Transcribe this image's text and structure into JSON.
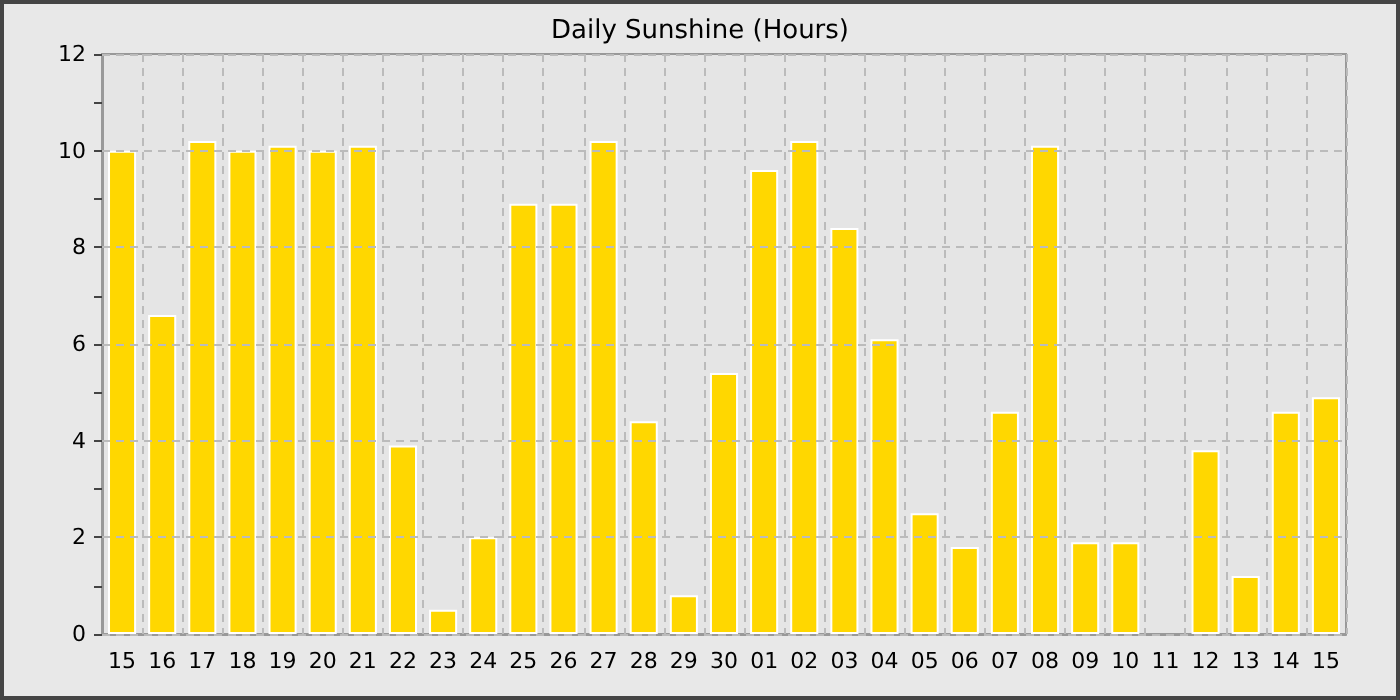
{
  "chart_data": {
    "type": "bar",
    "title": "Daily Sunshine (Hours)",
    "categories": [
      "15",
      "16",
      "17",
      "18",
      "19",
      "20",
      "21",
      "22",
      "23",
      "24",
      "25",
      "26",
      "27",
      "28",
      "29",
      "30",
      "01",
      "02",
      "03",
      "04",
      "05",
      "06",
      "07",
      "08",
      "09",
      "10",
      "11",
      "12",
      "13",
      "14",
      "15"
    ],
    "values": [
      10,
      6.6,
      10.2,
      10,
      10.1,
      10,
      10.1,
      3.9,
      0.5,
      2,
      8.9,
      8.9,
      10.2,
      4.4,
      0.8,
      5.4,
      9.6,
      10.2,
      8.4,
      6.1,
      2.5,
      1.8,
      4.6,
      10.1,
      1.9,
      1.9,
      0,
      3.8,
      1.2,
      4.6,
      4.9
    ],
    "color": "#ffd700",
    "ylim": [
      0,
      12
    ],
    "yticks": [
      0,
      {
        "value": 1,
        "label": null
      },
      2,
      {
        "value": 3,
        "label": null
      },
      4,
      {
        "value": 5,
        "label": null
      },
      6,
      {
        "value": 7,
        "label": null
      },
      8,
      {
        "value": 9,
        "label": null
      },
      10,
      {
        "value": 11,
        "label": null
      },
      12
    ],
    "grid": true
  }
}
